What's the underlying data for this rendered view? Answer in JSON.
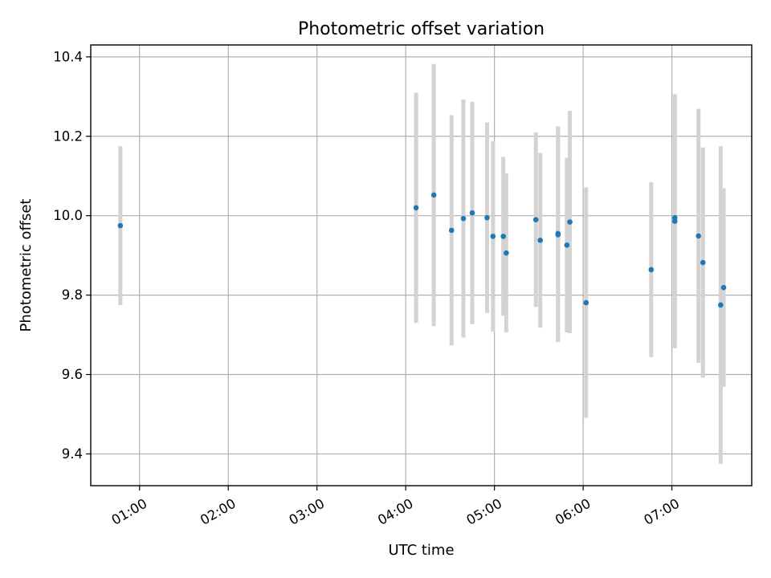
{
  "chart_data": {
    "type": "scatter",
    "title": "Photometric offset variation",
    "xlabel": "UTC time",
    "ylabel": "Photometric offset",
    "x_unit": "UTC time (HH:MM)",
    "xlim": [
      "00:27",
      "07:54"
    ],
    "ylim": [
      9.32,
      10.43
    ],
    "grid": true,
    "marker_color": "#1f77b4",
    "errorbar_color": "#d3d3d3",
    "x_ticks": [
      "01:00",
      "02:00",
      "03:00",
      "04:00",
      "05:00",
      "06:00",
      "07:00"
    ],
    "y_ticks": [
      9.4,
      9.6,
      9.8,
      10.0,
      10.2,
      10.4
    ],
    "points": [
      {
        "x": "00:47",
        "y": 9.975,
        "yerr": 0.2
      },
      {
        "x": "04:07",
        "y": 10.02,
        "yerr": 0.29
      },
      {
        "x": "04:19",
        "y": 10.052,
        "yerr": 0.33
      },
      {
        "x": "04:31",
        "y": 9.963,
        "yerr": 0.29
      },
      {
        "x": "04:39",
        "y": 9.993,
        "yerr": 0.3
      },
      {
        "x": "04:45",
        "y": 10.007,
        "yerr": 0.28
      },
      {
        "x": "04:55",
        "y": 9.995,
        "yerr": 0.24
      },
      {
        "x": "04:59",
        "y": 9.948,
        "yerr": 0.24
      },
      {
        "x": "05:06",
        "y": 9.948,
        "yerr": 0.2
      },
      {
        "x": "05:08",
        "y": 9.906,
        "yerr": 0.2
      },
      {
        "x": "05:28",
        "y": 9.99,
        "yerr": 0.22
      },
      {
        "x": "05:31",
        "y": 9.938,
        "yerr": 0.22
      },
      {
        "x": "05:43",
        "y": 9.955,
        "yerr": 0.27
      },
      {
        "x": "05:43",
        "y": 9.952,
        "yerr": 0.27
      },
      {
        "x": "05:49",
        "y": 9.926,
        "yerr": 0.22
      },
      {
        "x": "05:51",
        "y": 9.984,
        "yerr": 0.28
      },
      {
        "x": "06:02",
        "y": 9.781,
        "yerr": 0.29
      },
      {
        "x": "06:46",
        "y": 9.864,
        "yerr": 0.22
      },
      {
        "x": "07:02",
        "y": 9.995,
        "yerr": 0.31
      },
      {
        "x": "07:02",
        "y": 9.986,
        "yerr": 0.32
      },
      {
        "x": "07:18",
        "y": 9.949,
        "yerr": 0.32
      },
      {
        "x": "07:21",
        "y": 9.882,
        "yerr": 0.29
      },
      {
        "x": "07:33",
        "y": 9.775,
        "yerr": 0.4
      },
      {
        "x": "07:35",
        "y": 9.819,
        "yerr": 0.25
      }
    ]
  }
}
